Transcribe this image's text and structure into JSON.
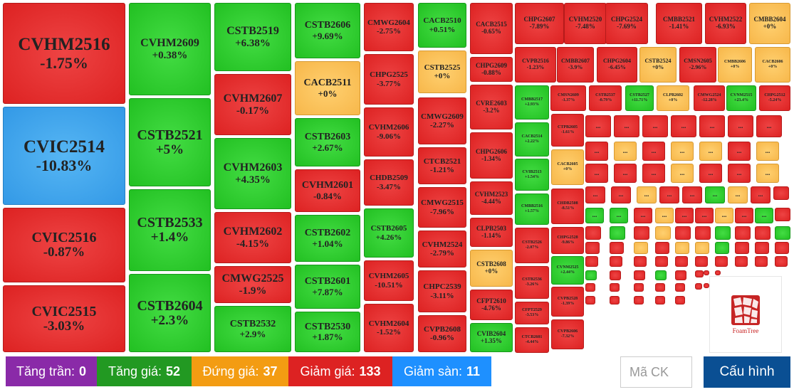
{
  "tiles": [
    {
      "label": "CVHM2516",
      "change": "-1.75%",
      "color": "red",
      "size": "xl"
    },
    {
      "label": "CVIC2514",
      "change": "-10.83%",
      "color": "blue",
      "size": "xl"
    },
    {
      "label": "CVIC2516",
      "change": "-0.87%",
      "color": "red",
      "size": "l"
    },
    {
      "label": "CVIC2515",
      "change": "-3.03%",
      "color": "red",
      "size": "l"
    },
    {
      "label": "CVHM2609",
      "change": "+0.38%",
      "color": "green",
      "size": "m"
    },
    {
      "label": "CSTB2521",
      "change": "+5%",
      "color": "green",
      "size": "l"
    },
    {
      "label": "CSTB2533",
      "change": "+1.4%",
      "color": "green",
      "size": "l"
    },
    {
      "label": "CSTB2604",
      "change": "+2.3%",
      "color": "green",
      "size": "l"
    },
    {
      "label": "CSTB2519",
      "change": "+6.38%",
      "color": "green",
      "size": "m"
    },
    {
      "label": "CVHM2607",
      "change": "-0.17%",
      "color": "red",
      "size": "m"
    },
    {
      "label": "CVHM2603",
      "change": "+4.35%",
      "color": "green",
      "size": "m"
    },
    {
      "label": "CVHM2602",
      "change": "-4.15%",
      "color": "red",
      "size": "m"
    },
    {
      "label": "CMWG2525",
      "change": "-1.9%",
      "color": "red",
      "size": "m"
    },
    {
      "label": "CSTB2532",
      "change": "+2.9%",
      "color": "green",
      "size": "s"
    },
    {
      "label": "CSTB2606",
      "change": "+9.69%",
      "color": "green",
      "size": "s"
    },
    {
      "label": "CACB2511",
      "change": "+0%",
      "color": "yellow",
      "size": "s"
    },
    {
      "label": "CSTB2603",
      "change": "+2.67%",
      "color": "green",
      "size": "s"
    },
    {
      "label": "CVHM2601",
      "change": "-0.84%",
      "color": "red",
      "size": "s"
    },
    {
      "label": "CSTB2602",
      "change": "+1.04%",
      "color": "green",
      "size": "s"
    },
    {
      "label": "CSTB2601",
      "change": "+7.87%",
      "color": "green",
      "size": "s"
    },
    {
      "label": "CSTB2530",
      "change": "+1.87%",
      "color": "green",
      "size": "s"
    },
    {
      "label": "CMWG2604",
      "change": "-2.75%",
      "color": "red",
      "size": "xs"
    },
    {
      "label": "CHPG2525",
      "change": "-3.77%",
      "color": "red",
      "size": "xs"
    },
    {
      "label": "CVHM2606",
      "change": "-9.06%",
      "color": "red",
      "size": "xs"
    },
    {
      "label": "CHDB2509",
      "change": "-3.47%",
      "color": "red",
      "size": "xs"
    },
    {
      "label": "CSTB2605",
      "change": "+4.26%",
      "color": "green",
      "size": "xs"
    },
    {
      "label": "CVHM2605",
      "change": "-10.51%",
      "color": "red",
      "size": "xs"
    },
    {
      "label": "CVHM2604",
      "change": "-1.52%",
      "color": "red",
      "size": "xs"
    },
    {
      "label": "CACB2510",
      "change": "+0.51%",
      "color": "green",
      "size": "xs"
    },
    {
      "label": "CSTB2525",
      "change": "+0%",
      "color": "yellow",
      "size": "xs"
    },
    {
      "label": "CMWG2609",
      "change": "-2.27%",
      "color": "red",
      "size": "xs"
    },
    {
      "label": "CTCB2521",
      "change": "-1.21%",
      "color": "red",
      "size": "xs"
    },
    {
      "label": "CMWG2515",
      "change": "-7.96%",
      "color": "red",
      "size": "xs"
    },
    {
      "label": "CVHM2524",
      "change": "-2.79%",
      "color": "red",
      "size": "xs"
    },
    {
      "label": "CHPC2539",
      "change": "-3.11%",
      "color": "red",
      "size": "xs"
    },
    {
      "label": "CVPB2608",
      "change": "-0.96%",
      "color": "red",
      "size": "xs"
    },
    {
      "label": "CACB2515",
      "change": "-0.65%",
      "color": "red",
      "size": "xxs"
    },
    {
      "label": "CHPG2609",
      "change": "-0.88%",
      "color": "red",
      "size": "xxs"
    },
    {
      "label": "CVRE2603",
      "change": "-3.2%",
      "color": "red",
      "size": "xxs"
    },
    {
      "label": "CHPG2606",
      "change": "-1.34%",
      "color": "red",
      "size": "xxs"
    },
    {
      "label": "CVHM2523",
      "change": "-4.44%",
      "color": "red",
      "size": "xxs"
    },
    {
      "label": "CLPB2503",
      "change": "-1.14%",
      "color": "red",
      "size": "xxs"
    },
    {
      "label": "CSTB2608",
      "change": "+0%",
      "color": "yellow",
      "size": "xxs"
    },
    {
      "label": "CFPT2610",
      "change": "-4.76%",
      "color": "red",
      "size": "xxs"
    },
    {
      "label": "CVIB2604",
      "change": "+1.35%",
      "color": "green",
      "size": "xxs"
    },
    {
      "label": "CHPG2607",
      "change": "-7.89%",
      "color": "red",
      "size": "xxs"
    },
    {
      "label": "CVHM2520",
      "change": "-7.48%",
      "color": "red",
      "size": "xxs"
    },
    {
      "label": "CHPG2524",
      "change": "-7.69%",
      "color": "red",
      "size": "xxs"
    },
    {
      "label": "CMBB2521",
      "change": "-1.41%",
      "color": "red",
      "size": "xxs"
    },
    {
      "label": "CVHM2522",
      "change": "-6.93%",
      "color": "red",
      "size": "xxs"
    },
    {
      "label": "CMBB2604",
      "change": "+0%",
      "color": "yellow",
      "size": "xxs"
    },
    {
      "label": "CVPB2516",
      "change": "-1.23%",
      "color": "red",
      "size": "t"
    },
    {
      "label": "CMBB2607",
      "change": "-3.9%",
      "color": "red",
      "size": "t"
    },
    {
      "label": "CHPG2604",
      "change": "-6.45%",
      "color": "red",
      "size": "t"
    },
    {
      "label": "CSTB2524",
      "change": "+0%",
      "color": "yellow",
      "size": "t"
    },
    {
      "label": "CMSN2605",
      "change": "-2.96%",
      "color": "red",
      "size": "t"
    },
    {
      "label": "CMBB2606",
      "change": "+0%",
      "color": "yellow",
      "size": "tt"
    },
    {
      "label": "CACB2606",
      "change": "+0%",
      "color": "yellow",
      "size": "tt"
    },
    {
      "label": "CMBB2517",
      "change": "+2.93%",
      "color": "green",
      "size": "tt"
    },
    {
      "label": "CMSN2609",
      "change": "-1.37%",
      "color": "red",
      "size": "tt"
    },
    {
      "label": "CSTB2537",
      "change": "-0.79%",
      "color": "red",
      "size": "tt"
    },
    {
      "label": "CSTB2527",
      "change": "+11.71%",
      "color": "green",
      "size": "tt"
    },
    {
      "label": "CLPB2602",
      "change": "+0%",
      "color": "yellow",
      "size": "tt"
    },
    {
      "label": "CMWG2524",
      "change": "-12.28%",
      "color": "red",
      "size": "tt"
    },
    {
      "label": "CVNM2515",
      "change": "+23.4%",
      "color": "green",
      "size": "tt"
    },
    {
      "label": "CHPG2512",
      "change": "-5.24%",
      "color": "red",
      "size": "tt"
    },
    {
      "label": "CACB2514",
      "change": "+2.22%",
      "color": "green",
      "size": "tt"
    },
    {
      "label": "CTPB2605",
      "change": "-1.61%",
      "color": "red",
      "size": "tt"
    },
    {
      "label": "CVIB2513",
      "change": "+1.54%",
      "color": "green",
      "size": "tt"
    },
    {
      "label": "CACB2605",
      "change": "+0%",
      "color": "yellow",
      "size": "tt"
    },
    {
      "label": "CMBB2516",
      "change": "+1.57%",
      "color": "green",
      "size": "tt"
    },
    {
      "label": "CHDB2508",
      "change": "-8.51%",
      "color": "red",
      "size": "tt"
    },
    {
      "label": "CHPG2528",
      "change": "-9.86%",
      "color": "red",
      "size": "tt"
    },
    {
      "label": "CSTB2526",
      "change": "-2.07%",
      "color": "red",
      "size": "tt"
    },
    {
      "label": "CVNM2525",
      "change": "+2.44%",
      "color": "green",
      "size": "tt"
    },
    {
      "label": "CSTB2536",
      "change": "-3.26%",
      "color": "red",
      "size": "tt"
    },
    {
      "label": "CVPB2528",
      "change": "-1.39%",
      "color": "red",
      "size": "tt"
    },
    {
      "label": "CFPT2529",
      "change": "-3.53%",
      "color": "red",
      "size": "tt"
    },
    {
      "label": "CVPB2606",
      "change": "-7.32%",
      "color": "red",
      "size": "tt"
    },
    {
      "label": "CTCB2601",
      "change": "-4.44%",
      "color": "red",
      "size": "tt"
    },
    {
      "label": "CSTB2609",
      "change": "+6.45%",
      "color": "green",
      "size": "tt"
    },
    {
      "label": "CVNM2605",
      "change": "+0%",
      "color": "yellow",
      "size": "tt"
    }
  ],
  "small_tiles": [
    "red",
    "red",
    "red",
    "red",
    "red",
    "red",
    "red",
    "red",
    "yellow",
    "red",
    "yellow",
    "yellow",
    "red",
    "yellow",
    "red",
    "red",
    "red",
    "yellow",
    "red",
    "red",
    "yellow",
    "red",
    "red",
    "yellow",
    "red",
    "red",
    "green",
    "yellow",
    "red",
    "red",
    "green",
    "green",
    "red",
    "yellow",
    "red",
    "red",
    "yellow",
    "red",
    "green",
    "red",
    "red",
    "green",
    "red",
    "yellow",
    "red",
    "red",
    "green",
    "red",
    "red",
    "green",
    "red",
    "red",
    "yellow",
    "red",
    "yellow",
    "yellow",
    "green",
    "red",
    "red",
    "red",
    "red",
    "red",
    "red",
    "red",
    "red",
    "red",
    "red",
    "red",
    "red",
    "red",
    "green",
    "red",
    "red",
    "green",
    "red",
    "red",
    "red",
    "red",
    "red",
    "red",
    "red",
    "red",
    "red",
    "red",
    "red",
    "red",
    "red",
    "red",
    "red",
    "red"
  ],
  "ellipsis": "...",
  "foamtree_label": "FoamTree",
  "footer": {
    "ceiling_label": "Tăng trần:",
    "ceiling_count": "0",
    "up_label": "Tăng giá:",
    "up_count": "52",
    "flat_label": "Đứng giá:",
    "flat_count": "37",
    "down_label": "Giảm giá:",
    "down_count": "133",
    "floor_label": "Giảm sàn:",
    "floor_count": "11",
    "search_placeholder": "Mã CK",
    "config_label": "Cấu hình"
  },
  "colors": {
    "red": "#dd2222",
    "green": "#22c022",
    "yellow": "#f7b74a",
    "blue": "#3399e6",
    "purple": "#8a2aa8",
    "orange": "#f39c12",
    "cyan": "#1e90ff",
    "navy": "#0a4f93"
  }
}
